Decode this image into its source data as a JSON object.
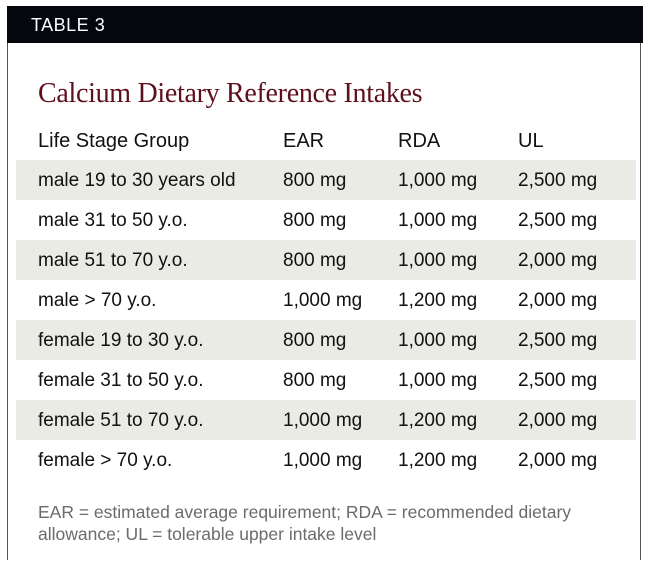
{
  "label": "TABLE 3",
  "title": "Calcium Dietary Reference Intakes",
  "headers": [
    "Life Stage Group",
    "EAR",
    "RDA",
    "UL"
  ],
  "rows": [
    [
      "male 19 to 30 years old",
      "800 mg",
      "1,000 mg",
      "2,500 mg"
    ],
    [
      "male 31 to 50 y.o.",
      "800 mg",
      "1,000 mg",
      "2,500 mg"
    ],
    [
      "male 51 to 70 y.o.",
      "800 mg",
      "1,000 mg",
      "2,000 mg"
    ],
    [
      "male > 70 y.o.",
      "1,000 mg",
      "1,200 mg",
      "2,000 mg"
    ],
    [
      "female 19 to 30 y.o.",
      "800 mg",
      "1,000 mg",
      "2,500 mg"
    ],
    [
      "female 31 to 50 y.o.",
      "800 mg",
      "1,000 mg",
      "2,500 mg"
    ],
    [
      "female 51 to 70 y.o.",
      "1,000 mg",
      "1,200 mg",
      "2,000 mg"
    ],
    [
      "female > 70 y.o.",
      "1,000 mg",
      "1,200 mg",
      "2,000 mg"
    ]
  ],
  "footnote": "EAR = estimated average requirement; RDA = recommended dietary allowance; UL = tolerable upper intake level",
  "colors": {
    "title": "#5e0f1c",
    "bar": "#05070f",
    "shade": "#ebebe6"
  }
}
